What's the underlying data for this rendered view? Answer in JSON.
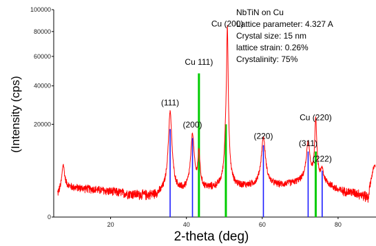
{
  "chart_data": {
    "type": "line",
    "xlabel": "2-theta (deg)",
    "ylabel": "(Intensity (cps)",
    "xlim": [
      5,
      90
    ],
    "y_scale": "sqrt",
    "ylim": [
      0,
      100000
    ],
    "x_ticks": [
      20,
      40,
      60,
      80
    ],
    "y_ticks": [
      0,
      20000,
      40000,
      60000,
      80000,
      100000
    ],
    "x_tick_labels": [
      "20",
      "40",
      "60",
      "80"
    ],
    "y_tick_labels": [
      "0",
      "20000",
      "40000",
      "60000",
      "80000",
      "100000"
    ],
    "grid": false,
    "colors": {
      "pattern": "#ff0000",
      "substrate": "#00cc00",
      "reference": "#1a1aff",
      "axes": "#000000"
    },
    "info_lines": [
      "NbTiN on Cu",
      "Lattice parameter: 4.327 A",
      "Crystal size: 15 nm",
      "lattice strain: 0.26%",
      "Crystalinity: 75%"
    ],
    "pattern": {
      "baseline": [
        [
          6,
          1100
        ],
        [
          8,
          2200
        ],
        [
          10,
          2000
        ],
        [
          15,
          1800
        ],
        [
          20,
          1500
        ],
        [
          25,
          1200
        ],
        [
          30,
          1000
        ],
        [
          35,
          950
        ],
        [
          40,
          1400
        ],
        [
          45,
          1700
        ],
        [
          50,
          1900
        ],
        [
          55,
          2100
        ],
        [
          60,
          2200
        ],
        [
          65,
          2300
        ],
        [
          70,
          2800
        ],
        [
          75,
          3200
        ],
        [
          80,
          1600
        ],
        [
          85,
          1300
        ],
        [
          88,
          900
        ],
        [
          89.5,
          6000
        ]
      ],
      "peaks": [
        {
          "x": 7.5,
          "height": 4500,
          "width": 0.35
        },
        {
          "x": 35.7,
          "height": 25000,
          "width": 0.45
        },
        {
          "x": 41.6,
          "height": 14500,
          "width": 0.45
        },
        {
          "x": 43.3,
          "height": 8000,
          "width": 0.3
        },
        {
          "x": 50.4,
          "height": 9500,
          "width": 0.28
        },
        {
          "x": 50.8,
          "height": 80000,
          "width": 0.22
        },
        {
          "x": 60.3,
          "height": 12500,
          "width": 0.55
        },
        {
          "x": 72.1,
          "height": 10000,
          "width": 0.5
        },
        {
          "x": 74.1,
          "height": 19000,
          "width": 0.28
        },
        {
          "x": 75.8,
          "height": 2200,
          "width": 0.35
        }
      ],
      "noise": 600
    },
    "substrate_lines": [
      {
        "x": 43.3,
        "value": 48000
      },
      {
        "x": 50.4,
        "value": 20000
      },
      {
        "x": 74.1,
        "value": 10000
      }
    ],
    "reference_lines": [
      {
        "x": 35.7,
        "value": 18000
      },
      {
        "x": 41.6,
        "value": 14500
      },
      {
        "x": 60.3,
        "value": 12000
      },
      {
        "x": 72.1,
        "value": 10000
      },
      {
        "x": 75.8,
        "value": 5000
      }
    ],
    "peak_labels": [
      {
        "text": "(111)",
        "x": 35.7,
        "y": 27500
      },
      {
        "text": "(200)",
        "x": 41.6,
        "y": 17500
      },
      {
        "text": "Cu 111)",
        "x": 43.3,
        "y": 52000
      },
      {
        "text": "Cu (200)",
        "x": 50.8,
        "y": 82000
      },
      {
        "text": "(220)",
        "x": 60.3,
        "y": 13200
      },
      {
        "text": "(311)",
        "x": 72.1,
        "y": 10800
      },
      {
        "text": "Cu (220)",
        "x": 74.1,
        "y": 20500
      },
      {
        "text": "(222)",
        "x": 75.8,
        "y": 6500
      }
    ]
  }
}
